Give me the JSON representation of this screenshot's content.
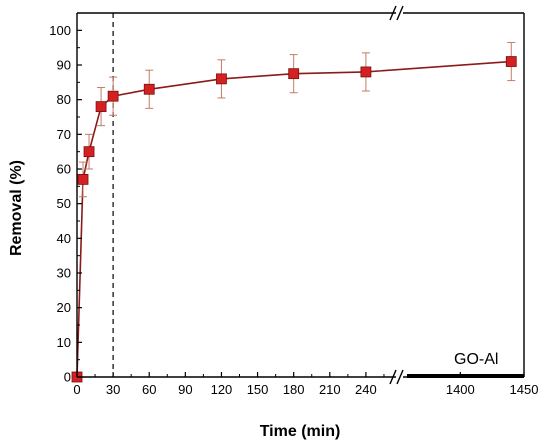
{
  "chart_data": {
    "type": "line",
    "xlabel": "Time (min)",
    "ylabel": "Removal (%)",
    "legend": "GO-Al",
    "ylim": [
      0,
      105
    ],
    "y_ticks": [
      "0",
      "10",
      "20",
      "30",
      "40",
      "50",
      "60",
      "70",
      "80",
      "90",
      "100"
    ],
    "x_segments": [
      {
        "range": [
          0,
          265
        ],
        "ticks": [
          0,
          30,
          60,
          90,
          120,
          150,
          180,
          210,
          240
        ]
      },
      {
        "range": [
          1355,
          1450
        ],
        "ticks": [
          1400,
          1450
        ]
      }
    ],
    "x_tick_labels": [
      "0",
      "30",
      "60",
      "90",
      "120",
      "150",
      "180",
      "210",
      "240",
      "1400",
      "1450"
    ],
    "axis_break": "x",
    "vline_x": 30,
    "series": [
      {
        "marker": "square",
        "color": "#d42020",
        "line_color": "#8b1a1a",
        "x": [
          0,
          5,
          10,
          20,
          30,
          60,
          120,
          180,
          240,
          1440
        ],
        "y": [
          0,
          57,
          65,
          78,
          81,
          83,
          86,
          87.5,
          88,
          91
        ],
        "error": [
          0,
          5,
          5,
          5.5,
          5.5,
          5.5,
          5.5,
          5.5,
          5.5,
          5.5
        ]
      }
    ]
  }
}
